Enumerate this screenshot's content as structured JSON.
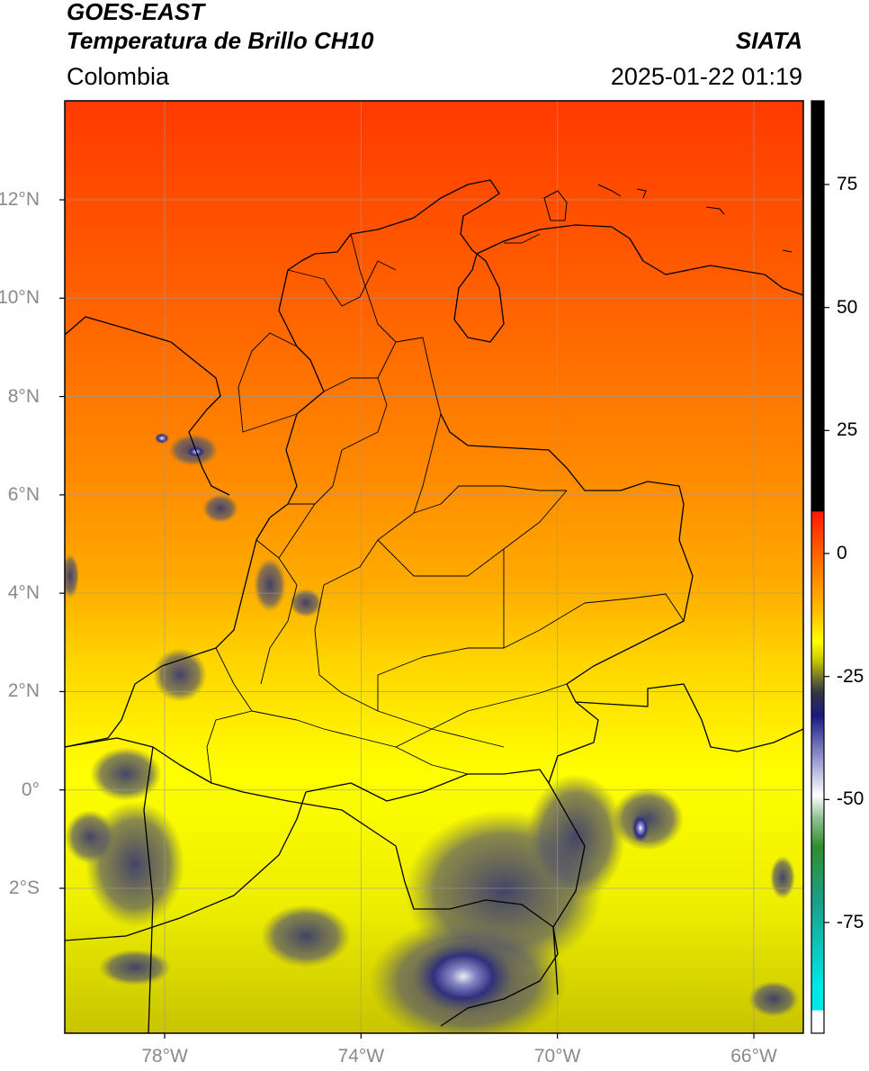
{
  "header": {
    "satellite": "GOES-EAST",
    "product": "Temperatura de Brillo CH10",
    "organization": "SIATA",
    "region": "Colombia",
    "timestamp": "2025-01-22 01:19"
  },
  "map": {
    "lon_range": [
      -80,
      -65
    ],
    "lat_range": [
      -5,
      14
    ],
    "lat_ticks": [
      {
        "lat": 12,
        "label": "12°N"
      },
      {
        "lat": 10,
        "label": "10°N"
      },
      {
        "lat": 8,
        "label": "8°N"
      },
      {
        "lat": 6,
        "label": "6°N"
      },
      {
        "lat": 4,
        "label": "4°N"
      },
      {
        "lat": 2,
        "label": "2°N"
      },
      {
        "lat": 0,
        "label": "0°"
      },
      {
        "lat": -2,
        "label": "2°S"
      }
    ],
    "lon_ticks": [
      {
        "lon": -78,
        "label": "78°W"
      },
      {
        "lon": -74,
        "label": "74°W"
      },
      {
        "lon": -70,
        "label": "70°W"
      },
      {
        "lon": -66,
        "label": "66°W"
      }
    ],
    "grid": true
  },
  "colorbar": {
    "ticks": [
      {
        "value": 75,
        "label": "75"
      },
      {
        "value": 50,
        "label": "50"
      },
      {
        "value": 25,
        "label": "25"
      },
      {
        "value": 0,
        "label": "0"
      },
      {
        "value": -25,
        "label": "-25"
      },
      {
        "value": -50,
        "label": "-50"
      },
      {
        "value": -75,
        "label": "-75"
      }
    ],
    "colors": {
      "warm_top": "#ff3300",
      "orange": "#ff8800",
      "yellow": "#ffff00",
      "olive": "#c8c800",
      "navy": "#1a1a7a",
      "white": "#ffffff",
      "green": "#2f8f2f",
      "cyan": "#00e0e0",
      "black": "#000000"
    }
  }
}
